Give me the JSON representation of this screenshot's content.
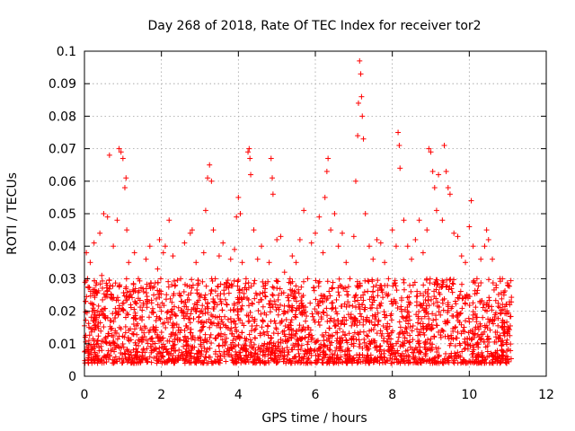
{
  "chart_data": {
    "type": "scatter",
    "title": "Day 268 of 2018, Rate Of TEC Index for receiver tor2",
    "xlabel": "GPS time / hours",
    "ylabel": "ROTI / TECUs",
    "xlim": [
      0,
      12
    ],
    "ylim": [
      0,
      0.1
    ],
    "xticks": [
      0,
      2,
      4,
      6,
      8,
      10,
      12
    ],
    "xtick_labels": [
      "0",
      "2",
      "4",
      "6",
      "8",
      "10",
      "12"
    ],
    "yticks": [
      0,
      0.01,
      0.02,
      0.03,
      0.04,
      0.05,
      0.06,
      0.07,
      0.08,
      0.09,
      0.1
    ],
    "ytick_labels": [
      "0",
      "0.01",
      "0.02",
      "0.03",
      "0.04",
      "0.05",
      "0.06",
      "0.07",
      "0.08",
      "0.09",
      "0.1"
    ],
    "grid": true,
    "marker": "+",
    "series": [
      {
        "name": "ROTI",
        "color": "#ff0000",
        "points": [
          [
            0.02,
            0.012
          ],
          [
            0.05,
            0.038
          ],
          [
            0.08,
            0.03
          ],
          [
            0.12,
            0.015
          ],
          [
            0.15,
            0.035
          ],
          [
            0.2,
            0.02
          ],
          [
            0.25,
            0.041
          ],
          [
            0.3,
            0.028
          ],
          [
            0.35,
            0.01
          ],
          [
            0.4,
            0.044
          ],
          [
            0.45,
            0.031
          ],
          [
            0.5,
            0.05
          ],
          [
            0.55,
            0.018
          ],
          [
            0.6,
            0.049
          ],
          [
            0.65,
            0.068
          ],
          [
            0.7,
            0.025
          ],
          [
            0.75,
            0.04
          ],
          [
            0.8,
            0.014
          ],
          [
            0.85,
            0.048
          ],
          [
            0.9,
            0.07
          ],
          [
            0.95,
            0.069
          ],
          [
            1.0,
            0.067
          ],
          [
            1.05,
            0.058
          ],
          [
            1.08,
            0.061
          ],
          [
            1.1,
            0.045
          ],
          [
            1.15,
            0.035
          ],
          [
            1.2,
            0.022
          ],
          [
            1.3,
            0.038
          ],
          [
            1.4,
            0.03
          ],
          [
            1.5,
            0.012
          ],
          [
            1.6,
            0.036
          ],
          [
            1.7,
            0.04
          ],
          [
            1.8,
            0.025
          ],
          [
            1.9,
            0.033
          ],
          [
            1.95,
            0.042
          ],
          [
            2.0,
            0.02
          ],
          [
            2.05,
            0.038
          ],
          [
            2.1,
            0.04
          ],
          [
            2.2,
            0.048
          ],
          [
            2.3,
            0.037
          ],
          [
            2.4,
            0.016
          ],
          [
            2.5,
            0.03
          ],
          [
            2.6,
            0.041
          ],
          [
            2.7,
            0.025
          ],
          [
            2.75,
            0.044
          ],
          [
            2.8,
            0.045
          ],
          [
            2.9,
            0.035
          ],
          [
            3.0,
            0.012
          ],
          [
            3.1,
            0.038
          ],
          [
            3.15,
            0.051
          ],
          [
            3.2,
            0.061
          ],
          [
            3.25,
            0.065
          ],
          [
            3.3,
            0.06
          ],
          [
            3.35,
            0.045
          ],
          [
            3.4,
            0.03
          ],
          [
            3.5,
            0.037
          ],
          [
            3.6,
            0.041
          ],
          [
            3.7,
            0.022
          ],
          [
            3.8,
            0.036
          ],
          [
            3.9,
            0.039
          ],
          [
            3.95,
            0.049
          ],
          [
            4.0,
            0.055
          ],
          [
            4.05,
            0.05
          ],
          [
            4.1,
            0.035
          ],
          [
            4.2,
            0.03
          ],
          [
            4.25,
            0.069
          ],
          [
            4.28,
            0.07
          ],
          [
            4.3,
            0.067
          ],
          [
            4.32,
            0.062
          ],
          [
            4.4,
            0.045
          ],
          [
            4.5,
            0.036
          ],
          [
            4.6,
            0.04
          ],
          [
            4.7,
            0.028
          ],
          [
            4.8,
            0.035
          ],
          [
            4.85,
            0.067
          ],
          [
            4.88,
            0.061
          ],
          [
            4.9,
            0.056
          ],
          [
            5.0,
            0.042
          ],
          [
            5.1,
            0.043
          ],
          [
            5.2,
            0.032
          ],
          [
            5.3,
            0.015
          ],
          [
            5.4,
            0.037
          ],
          [
            5.5,
            0.035
          ],
          [
            5.6,
            0.042
          ],
          [
            5.7,
            0.051
          ],
          [
            5.8,
            0.03
          ],
          [
            5.9,
            0.041
          ],
          [
            6.0,
            0.044
          ],
          [
            6.1,
            0.049
          ],
          [
            6.2,
            0.038
          ],
          [
            6.25,
            0.055
          ],
          [
            6.3,
            0.063
          ],
          [
            6.33,
            0.067
          ],
          [
            6.4,
            0.045
          ],
          [
            6.5,
            0.05
          ],
          [
            6.6,
            0.04
          ],
          [
            6.7,
            0.044
          ],
          [
            6.8,
            0.035
          ],
          [
            6.9,
            0.03
          ],
          [
            7.0,
            0.043
          ],
          [
            7.05,
            0.06
          ],
          [
            7.1,
            0.074
          ],
          [
            7.12,
            0.084
          ],
          [
            7.15,
            0.097
          ],
          [
            7.18,
            0.093
          ],
          [
            7.2,
            0.086
          ],
          [
            7.22,
            0.08
          ],
          [
            7.25,
            0.073
          ],
          [
            7.3,
            0.05
          ],
          [
            7.4,
            0.04
          ],
          [
            7.5,
            0.036
          ],
          [
            7.6,
            0.042
          ],
          [
            7.7,
            0.041
          ],
          [
            7.8,
            0.035
          ],
          [
            7.9,
            0.03
          ],
          [
            8.0,
            0.045
          ],
          [
            8.1,
            0.04
          ],
          [
            8.15,
            0.075
          ],
          [
            8.18,
            0.071
          ],
          [
            8.2,
            0.064
          ],
          [
            8.3,
            0.048
          ],
          [
            8.4,
            0.04
          ],
          [
            8.5,
            0.036
          ],
          [
            8.6,
            0.042
          ],
          [
            8.7,
            0.048
          ],
          [
            8.8,
            0.038
          ],
          [
            8.9,
            0.045
          ],
          [
            8.95,
            0.07
          ],
          [
            9.0,
            0.069
          ],
          [
            9.05,
            0.063
          ],
          [
            9.1,
            0.058
          ],
          [
            9.15,
            0.051
          ],
          [
            9.2,
            0.062
          ],
          [
            9.3,
            0.048
          ],
          [
            9.35,
            0.071
          ],
          [
            9.4,
            0.063
          ],
          [
            9.45,
            0.058
          ],
          [
            9.5,
            0.056
          ],
          [
            9.6,
            0.044
          ],
          [
            9.7,
            0.043
          ],
          [
            9.8,
            0.037
          ],
          [
            9.9,
            0.035
          ],
          [
            10.0,
            0.046
          ],
          [
            10.05,
            0.054
          ],
          [
            10.1,
            0.04
          ],
          [
            10.2,
            0.03
          ],
          [
            10.3,
            0.036
          ],
          [
            10.4,
            0.04
          ],
          [
            10.45,
            0.045
          ],
          [
            10.5,
            0.042
          ],
          [
            10.6,
            0.036
          ],
          [
            10.7,
            0.028
          ],
          [
            10.8,
            0.03
          ],
          [
            10.9,
            0.025
          ],
          [
            11.0,
            0.028
          ],
          [
            11.05,
            0.022
          ]
        ]
      }
    ],
    "band": {
      "description": "dense scatter of ROTI values between roughly 0.004 and 0.03 TECUs for every epoch from 0 to 11.1 hours",
      "x_range": [
        0,
        11.1
      ],
      "y_range": [
        0.004,
        0.03
      ]
    }
  }
}
